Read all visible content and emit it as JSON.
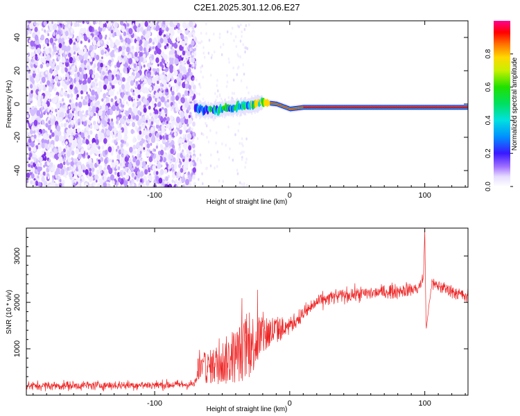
{
  "title": "C2E1.2025.301.12.06.E27",
  "colors": {
    "axis": "#000000",
    "snr_line": "#ee2222",
    "background": "#ffffff",
    "scatter": [
      "#f3eeff",
      "#e6dcff",
      "#d4bfff",
      "#bf9bff",
      "#a56cf5",
      "#8f45ee",
      "#7a2ae6"
    ]
  },
  "chart_data": [
    {
      "type": "heatmap",
      "name": "spectrogram",
      "xlabel": "Height of straight line (km)",
      "ylabel": "Frequency (Hz)",
      "xlim": [
        -195,
        132
      ],
      "ylim": [
        -50,
        50
      ],
      "xticks": [
        -100,
        0,
        100
      ],
      "xtick_labels": [
        "-100",
        "0",
        "100"
      ],
      "yticks": [
        -40,
        -20,
        0,
        20,
        40
      ],
      "ytick_labels": [
        "-40",
        "-20",
        "0",
        "20",
        "40"
      ],
      "noise_region": {
        "x_from": -195,
        "x_to": -70,
        "density": "high"
      },
      "sparse_noise_region": {
        "x_from": -70,
        "x_to": -30,
        "density": "low"
      },
      "signal_track": {
        "x": [
          -70,
          -60,
          -50,
          -40,
          -30,
          -20,
          -10,
          0,
          10,
          20,
          50,
          95,
          100,
          132
        ],
        "frequency": [
          -3,
          -4,
          -3,
          -2,
          -1,
          1,
          0,
          -3,
          -2,
          -2,
          -2,
          -2,
          -2,
          -2
        ],
        "normalized_amplitude": [
          0.3,
          0.4,
          0.45,
          0.45,
          0.5,
          0.7,
          0.9,
          0.8,
          0.9,
          0.95,
          0.95,
          0.95,
          0.95,
          0.95
        ]
      },
      "colorbar": {
        "label": "Normalized spectral amplitude",
        "range": [
          0,
          1
        ],
        "ticks": [
          0.0,
          0.2,
          0.4,
          0.6,
          0.8
        ],
        "tick_labels": [
          "0.0",
          "0.2",
          "0.4",
          "0.6",
          "0.8"
        ]
      }
    },
    {
      "type": "line",
      "name": "snr",
      "xlabel": "Height of straight line (km)",
      "ylabel": "SNR (10 * v/v)",
      "xlim": [
        -195,
        132
      ],
      "ylim": [
        0,
        3600
      ],
      "xticks": [
        -100,
        0,
        100
      ],
      "xtick_labels": [
        "-100",
        "0",
        "100"
      ],
      "yticks": [
        1000,
        2000,
        3000
      ],
      "ytick_labels": [
        "1000",
        "2000",
        "3000"
      ],
      "series": [
        {
          "name": "SNR",
          "x": [
            -195,
            -150,
            -100,
            -75,
            -70,
            -68,
            -60,
            -50,
            -40,
            -30,
            -20,
            -10,
            0,
            10,
            20,
            30,
            40,
            60,
            80,
            95,
            99,
            100,
            101,
            105,
            120,
            132
          ],
          "y": [
            200,
            210,
            220,
            230,
            240,
            550,
            600,
            700,
            850,
            1050,
            1300,
            1400,
            1500,
            1750,
            2000,
            2100,
            2150,
            2200,
            2250,
            2300,
            2500,
            3550,
            1400,
            2400,
            2250,
            2100
          ],
          "noise": [
            110,
            110,
            110,
            110,
            120,
            300,
            350,
            500,
            600,
            700,
            500,
            300,
            200,
            200,
            180,
            180,
            180,
            170,
            170,
            170,
            150,
            0,
            0,
            150,
            170,
            180
          ]
        }
      ]
    }
  ]
}
